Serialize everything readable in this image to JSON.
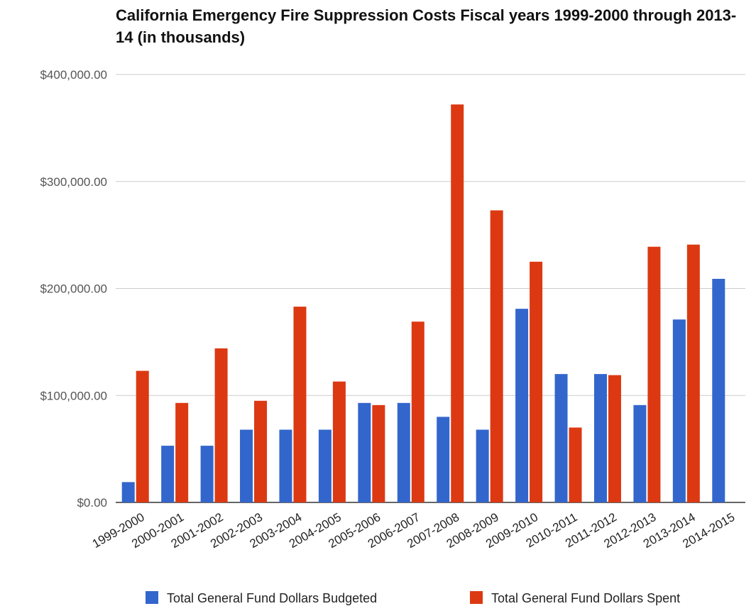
{
  "chart_data": {
    "type": "bar",
    "title": "California Emergency Fire Suppression Costs Fiscal years 1999-2000 through 2013-14 (in thousands)",
    "xlabel": "",
    "ylabel": "",
    "ylim": [
      0,
      400000
    ],
    "yticks": [
      0,
      100000,
      200000,
      300000,
      400000
    ],
    "ytick_labels": [
      "$0.00",
      "$100,000.00",
      "$200,000.00",
      "$300,000.00",
      "$400,000.00"
    ],
    "grid": true,
    "legend_position": "bottom",
    "categories": [
      "1999-2000",
      "2000-2001",
      "2001-2002",
      "2002-2003",
      "2003-2004",
      "2004-2005",
      "2005-2006",
      "2006-2007",
      "2007-2008",
      "2008-2009",
      "2009-2010",
      "2010-2011",
      "2011-2012",
      "2012-2013",
      "2013-2014",
      "2014-2015"
    ],
    "series": [
      {
        "name": "Total General Fund Dollars Budgeted",
        "color": "#3366cc",
        "values": [
          19000,
          53000,
          53000,
          68000,
          68000,
          68000,
          93000,
          93000,
          80000,
          68000,
          181000,
          120000,
          120000,
          91000,
          171000,
          209000
        ]
      },
      {
        "name": "Total General Fund Dollars Spent",
        "color": "#dc3912",
        "values": [
          123000,
          93000,
          144000,
          95000,
          183000,
          113000,
          91000,
          169000,
          372000,
          273000,
          225000,
          70000,
          119000,
          239000,
          241000,
          null
        ]
      }
    ]
  }
}
